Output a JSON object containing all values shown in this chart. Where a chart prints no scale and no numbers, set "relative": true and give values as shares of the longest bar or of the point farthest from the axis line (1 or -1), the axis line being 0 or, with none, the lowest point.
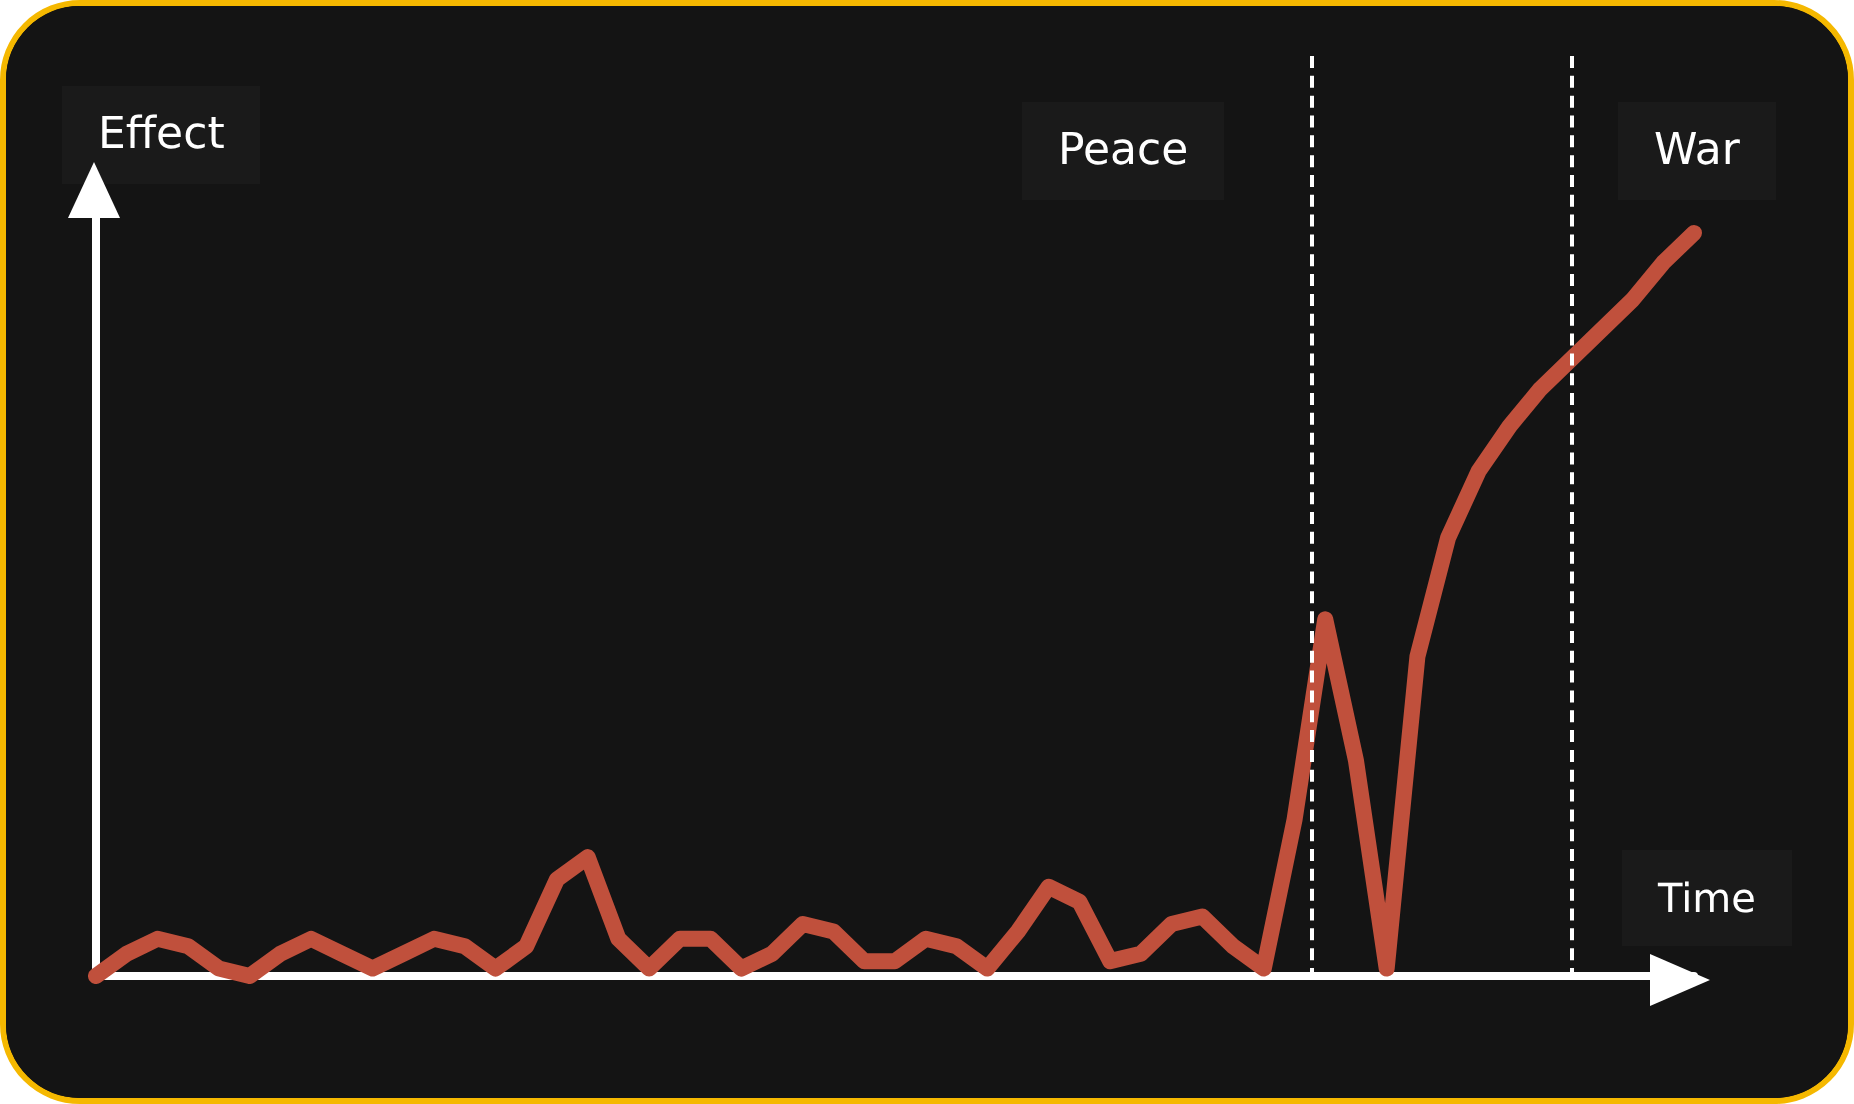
{
  "chart_data": {
    "type": "line",
    "relative": true,
    "xlabel": "Time",
    "ylabel": "Effect",
    "annotations": [
      "Peace",
      "War"
    ],
    "categories": [
      null,
      null,
      null,
      null,
      null,
      null,
      null,
      null,
      null,
      null,
      null,
      null,
      null,
      null,
      null,
      null,
      null,
      null,
      null,
      null,
      null,
      null,
      null,
      null,
      null,
      null,
      null,
      null,
      null,
      null,
      null,
      null,
      null,
      null,
      null,
      null,
      null,
      null,
      null,
      null,
      null,
      null,
      null,
      null,
      null,
      null,
      null,
      null,
      null,
      null,
      null,
      null,
      null
    ],
    "series": [
      {
        "color": "#c0503c",
        "values": [
          0,
          0.03,
          0.05,
          0.04,
          0.01,
          0,
          0.03,
          0.05,
          0.03,
          0.01,
          0.03,
          0.05,
          0.04,
          0.01,
          0.04,
          0.13,
          0.16,
          0.05,
          0.01,
          0.05,
          0.05,
          0.01,
          0.03,
          0.07,
          0.06,
          0.02,
          0.02,
          0.05,
          0.04,
          0.01,
          0.06,
          0.12,
          0.1,
          0.02,
          0.03,
          0.07,
          0.08,
          0.04,
          0.01,
          0.21,
          0.48,
          0.29,
          0.01,
          0.43,
          0.59,
          0.68,
          0.74,
          0.79,
          0.83,
          0.87,
          0.91,
          0.96,
          1
        ]
      }
    ],
    "grid": false,
    "line_style": "solid"
  }
}
